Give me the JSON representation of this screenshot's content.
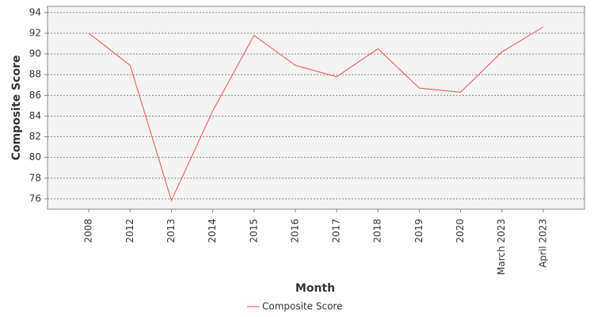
{
  "chart_data": {
    "type": "line",
    "categories": [
      "2008",
      "2012",
      "2013",
      "2014",
      "2015",
      "2016",
      "2017",
      "2018",
      "2019",
      "2020",
      "March 2023",
      "April 2023"
    ],
    "series": [
      {
        "name": "Composite Score",
        "color": "#f0504a",
        "values": [
          92.0,
          88.9,
          75.85,
          84.5,
          91.8,
          88.9,
          87.8,
          90.5,
          86.7,
          86.3,
          90.2,
          92.6
        ]
      }
    ],
    "x_label": "Month",
    "y_label": "Composite Score",
    "ylim": [
      75.0,
      94.6
    ],
    "yticks": [
      76,
      78,
      80,
      82,
      84,
      86,
      88,
      90,
      92,
      94
    ],
    "grid": true,
    "legend": "bottom"
  }
}
